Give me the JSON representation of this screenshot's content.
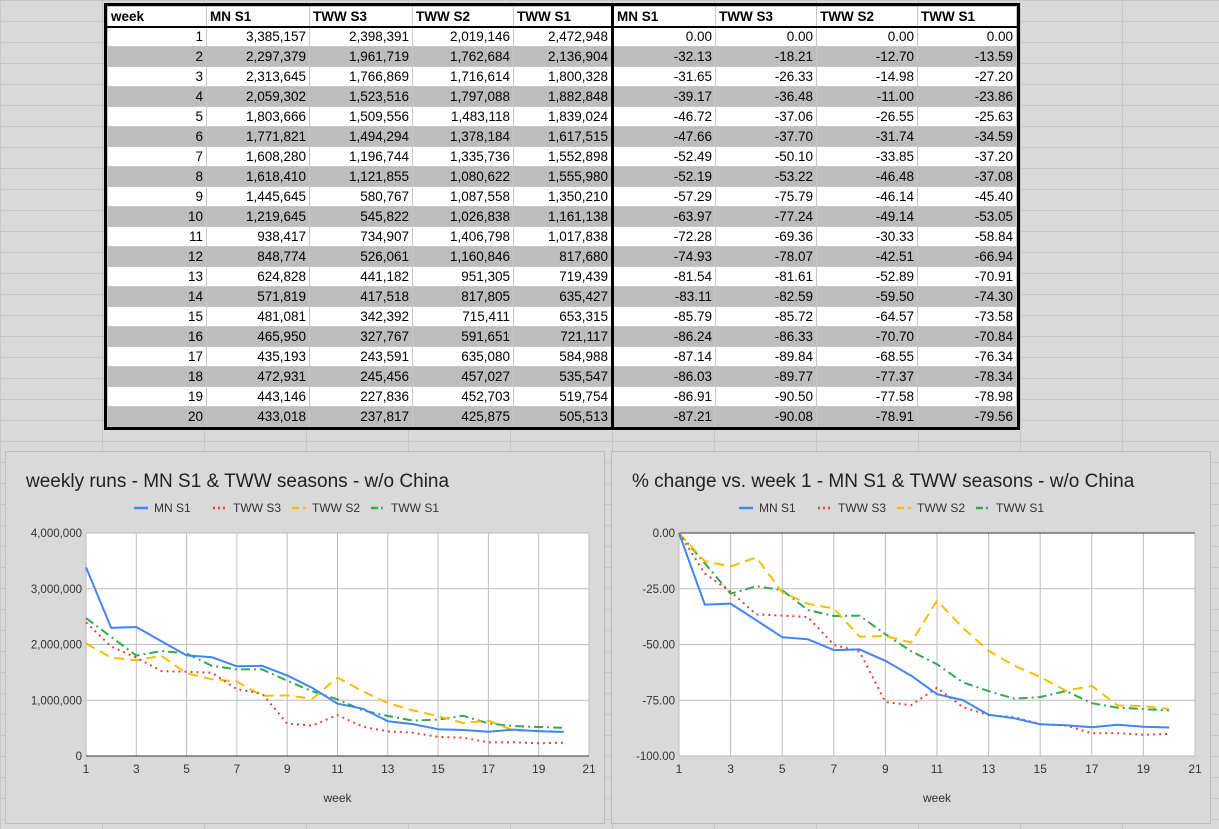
{
  "table": {
    "headers": [
      "week",
      "MN S1",
      "TWW S3",
      "TWW S2",
      "TWW S1",
      "MN S1",
      "TWW S3",
      "TWW S2",
      "TWW S1"
    ],
    "rows": [
      [
        "1",
        "3,385,157",
        "2,398,391",
        "2,019,146",
        "2,472,948",
        "0.00",
        "0.00",
        "0.00",
        "0.00"
      ],
      [
        "2",
        "2,297,379",
        "1,961,719",
        "1,762,684",
        "2,136,904",
        "-32.13",
        "-18.21",
        "-12.70",
        "-13.59"
      ],
      [
        "3",
        "2,313,645",
        "1,766,869",
        "1,716,614",
        "1,800,328",
        "-31.65",
        "-26.33",
        "-14.98",
        "-27.20"
      ],
      [
        "4",
        "2,059,302",
        "1,523,516",
        "1,797,088",
        "1,882,848",
        "-39.17",
        "-36.48",
        "-11.00",
        "-23.86"
      ],
      [
        "5",
        "1,803,666",
        "1,509,556",
        "1,483,118",
        "1,839,024",
        "-46.72",
        "-37.06",
        "-26.55",
        "-25.63"
      ],
      [
        "6",
        "1,771,821",
        "1,494,294",
        "1,378,184",
        "1,617,515",
        "-47.66",
        "-37.70",
        "-31.74",
        "-34.59"
      ],
      [
        "7",
        "1,608,280",
        "1,196,744",
        "1,335,736",
        "1,552,898",
        "-52.49",
        "-50.10",
        "-33.85",
        "-37.20"
      ],
      [
        "8",
        "1,618,410",
        "1,121,855",
        "1,080,622",
        "1,555,980",
        "-52.19",
        "-53.22",
        "-46.48",
        "-37.08"
      ],
      [
        "9",
        "1,445,645",
        "580,767",
        "1,087,558",
        "1,350,210",
        "-57.29",
        "-75.79",
        "-46.14",
        "-45.40"
      ],
      [
        "10",
        "1,219,645",
        "545,822",
        "1,026,838",
        "1,161,138",
        "-63.97",
        "-77.24",
        "-49.14",
        "-53.05"
      ],
      [
        "11",
        "938,417",
        "734,907",
        "1,406,798",
        "1,017,838",
        "-72.28",
        "-69.36",
        "-30.33",
        "-58.84"
      ],
      [
        "12",
        "848,774",
        "526,061",
        "1,160,846",
        "817,680",
        "-74.93",
        "-78.07",
        "-42.51",
        "-66.94"
      ],
      [
        "13",
        "624,828",
        "441,182",
        "951,305",
        "719,439",
        "-81.54",
        "-81.61",
        "-52.89",
        "-70.91"
      ],
      [
        "14",
        "571,819",
        "417,518",
        "817,805",
        "635,427",
        "-83.11",
        "-82.59",
        "-59.50",
        "-74.30"
      ],
      [
        "15",
        "481,081",
        "342,392",
        "715,411",
        "653,315",
        "-85.79",
        "-85.72",
        "-64.57",
        "-73.58"
      ],
      [
        "16",
        "465,950",
        "327,767",
        "591,651",
        "721,117",
        "-86.24",
        "-86.33",
        "-70.70",
        "-70.84"
      ],
      [
        "17",
        "435,193",
        "243,591",
        "635,080",
        "584,988",
        "-87.14",
        "-89.84",
        "-68.55",
        "-76.34"
      ],
      [
        "18",
        "472,931",
        "245,456",
        "457,027",
        "535,547",
        "-86.03",
        "-89.77",
        "-77.37",
        "-78.34"
      ],
      [
        "19",
        "443,146",
        "227,836",
        "452,703",
        "519,754",
        "-86.91",
        "-90.50",
        "-77.58",
        "-78.98"
      ],
      [
        "20",
        "433,018",
        "237,817",
        "425,875",
        "505,513",
        "-87.21",
        "-90.08",
        "-78.91",
        "-79.56"
      ]
    ]
  },
  "chart_data": [
    {
      "type": "line",
      "title": "weekly runs - MN S1 & TWW seasons - w/o China",
      "xlabel": "week",
      "ylabel": "",
      "xlim": [
        1,
        21
      ],
      "ylim": [
        0,
        4000000
      ],
      "xticks": [
        "1",
        "3",
        "5",
        "7",
        "9",
        "11",
        "13",
        "15",
        "17",
        "19",
        "21"
      ],
      "yticks": [
        "4,000,000",
        "3,000,000",
        "2,000,000",
        "1,000,000",
        "0"
      ],
      "grid": true,
      "legend": "top",
      "x": [
        1,
        2,
        3,
        4,
        5,
        6,
        7,
        8,
        9,
        10,
        11,
        12,
        13,
        14,
        15,
        16,
        17,
        18,
        19,
        20
      ],
      "series": [
        {
          "name": "MN S1",
          "color": "#4285f4",
          "style": "solid",
          "values": [
            3385157,
            2297379,
            2313645,
            2059302,
            1803666,
            1771821,
            1608280,
            1618410,
            1445645,
            1219645,
            938417,
            848774,
            624828,
            571819,
            481081,
            465950,
            435193,
            472931,
            443146,
            433018
          ]
        },
        {
          "name": "TWW S3",
          "color": "#ea4335",
          "style": "dotted",
          "values": [
            2398391,
            1961719,
            1766869,
            1523516,
            1509556,
            1494294,
            1196744,
            1121855,
            580767,
            545822,
            734907,
            526061,
            441182,
            417518,
            342392,
            327767,
            243591,
            245456,
            227836,
            237817
          ]
        },
        {
          "name": "TWW S2",
          "color": "#fbbc04",
          "style": "dashed",
          "values": [
            2019146,
            1762684,
            1716614,
            1797088,
            1483118,
            1378184,
            1335736,
            1080622,
            1087558,
            1026838,
            1406798,
            1160846,
            951305,
            817805,
            715411,
            591651,
            635080,
            457027,
            452703,
            425875
          ]
        },
        {
          "name": "TWW S1",
          "color": "#34a853",
          "style": "dashdot",
          "values": [
            2472948,
            2136904,
            1800328,
            1882848,
            1839024,
            1617515,
            1552898,
            1555980,
            1350210,
            1161138,
            1017838,
            817680,
            719439,
            635427,
            653315,
            721117,
            584988,
            535547,
            519754,
            505513
          ]
        }
      ]
    },
    {
      "type": "line",
      "title": "% change vs. week 1 - MN S1 & TWW seasons - w/o China",
      "xlabel": "week",
      "ylabel": "",
      "xlim": [
        1,
        21
      ],
      "ylim": [
        -100,
        0
      ],
      "xticks": [
        "1",
        "3",
        "5",
        "7",
        "9",
        "11",
        "13",
        "15",
        "17",
        "19",
        "21"
      ],
      "yticks": [
        "0.00",
        "-25.00",
        "-50.00",
        "-75.00",
        "-100.00"
      ],
      "grid": true,
      "legend": "top",
      "x": [
        1,
        2,
        3,
        4,
        5,
        6,
        7,
        8,
        9,
        10,
        11,
        12,
        13,
        14,
        15,
        16,
        17,
        18,
        19,
        20
      ],
      "series": [
        {
          "name": "MN S1",
          "color": "#4285f4",
          "style": "solid",
          "values": [
            0,
            -32.13,
            -31.65,
            -39.17,
            -46.72,
            -47.66,
            -52.49,
            -52.19,
            -57.29,
            -63.97,
            -72.28,
            -74.93,
            -81.54,
            -83.11,
            -85.79,
            -86.24,
            -87.14,
            -86.03,
            -86.91,
            -87.21
          ]
        },
        {
          "name": "TWW S3",
          "color": "#ea4335",
          "style": "dotted",
          "values": [
            0,
            -18.21,
            -26.33,
            -36.48,
            -37.06,
            -37.7,
            -50.1,
            -53.22,
            -75.79,
            -77.24,
            -69.36,
            -78.07,
            -81.61,
            -82.59,
            -85.72,
            -86.33,
            -89.84,
            -89.77,
            -90.5,
            -90.08
          ]
        },
        {
          "name": "TWW S2",
          "color": "#fbbc04",
          "style": "dashed",
          "values": [
            0,
            -12.7,
            -14.98,
            -11.0,
            -26.55,
            -31.74,
            -33.85,
            -46.48,
            -46.14,
            -49.14,
            -30.33,
            -42.51,
            -52.89,
            -59.5,
            -64.57,
            -70.7,
            -68.55,
            -77.37,
            -77.58,
            -78.91
          ]
        },
        {
          "name": "TWW S1",
          "color": "#34a853",
          "style": "dashdot",
          "values": [
            0,
            -13.59,
            -27.2,
            -23.86,
            -25.63,
            -34.59,
            -37.2,
            -37.08,
            -45.4,
            -53.05,
            -58.84,
            -66.94,
            -70.91,
            -74.3,
            -73.58,
            -70.84,
            -76.34,
            -78.34,
            -78.98,
            -79.56
          ]
        }
      ]
    }
  ]
}
